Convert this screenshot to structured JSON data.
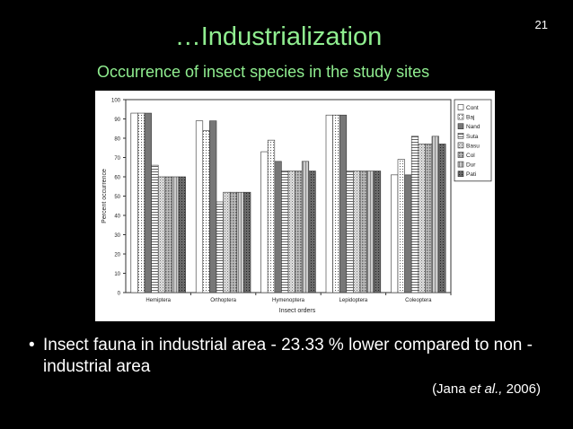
{
  "slide": {
    "number": "21",
    "title": "…Industrialization",
    "subtitle": "Occurrence of insect species in the  study sites",
    "bullet": "Insect fauna in industrial area - 23.33 % lower compared to non - industrial area",
    "citation": {
      "prefix": "(Jana ",
      "etal": "et al.,",
      "suffix": " 2006)"
    }
  },
  "chart_data": {
    "type": "bar",
    "xlabel": "Insect  orders",
    "ylabel": "Percent occurrence",
    "ylim": [
      0,
      100
    ],
    "yticks": [
      0,
      10,
      20,
      30,
      40,
      50,
      60,
      70,
      80,
      90,
      100
    ],
    "grid": false,
    "legend_position": "right",
    "categories": [
      "Hemiptera",
      "Orthoptera",
      "Hymenoptera",
      "Lepidoptera",
      "Coleoptera"
    ],
    "series": [
      {
        "name": "Cont",
        "values": [
          93,
          89,
          73,
          92,
          61
        ]
      },
      {
        "name": "Baj",
        "values": [
          93,
          84,
          79,
          92,
          69
        ]
      },
      {
        "name": "Nand",
        "values": [
          93,
          89,
          68,
          92,
          61
        ]
      },
      {
        "name": "Suta",
        "values": [
          66,
          47,
          63,
          63,
          81
        ]
      },
      {
        "name": "Basu",
        "values": [
          60,
          52,
          63,
          63,
          77
        ]
      },
      {
        "name": "Col",
        "values": [
          60,
          52,
          63,
          63,
          77
        ]
      },
      {
        "name": "Dur",
        "values": [
          60,
          52,
          68,
          63,
          81
        ]
      },
      {
        "name": "Pati",
        "values": [
          60,
          52,
          63,
          63,
          77
        ]
      }
    ]
  }
}
